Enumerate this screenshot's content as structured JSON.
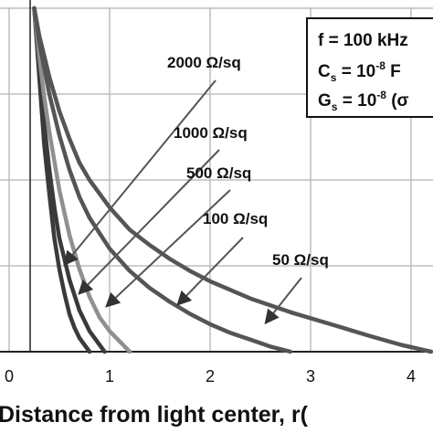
{
  "chart_data": {
    "type": "line",
    "xlabel": "Distance from light center, r(",
    "ylabel": "",
    "xlim": [
      0,
      4.4
    ],
    "x_ticks": [
      "0",
      "1",
      "2",
      "3",
      "4"
    ],
    "grid": true,
    "series": [
      {
        "name": "2000 Ω/sq",
        "color": "#3a3a3a",
        "x": [
          0.25,
          0.3,
          0.35,
          0.4,
          0.45,
          0.5,
          0.55,
          0.6,
          0.65,
          0.7,
          0.75,
          0.8
        ],
        "y": [
          1.0,
          0.8,
          0.6,
          0.46,
          0.33,
          0.24,
          0.17,
          0.11,
          0.07,
          0.04,
          0.02,
          0.0
        ]
      },
      {
        "name": "1000 Ω/sq",
        "color": "#3a3a3a",
        "x": [
          0.25,
          0.3,
          0.35,
          0.4,
          0.45,
          0.5,
          0.6,
          0.7,
          0.8,
          0.9,
          0.95
        ],
        "y": [
          1.0,
          0.82,
          0.66,
          0.53,
          0.42,
          0.33,
          0.21,
          0.12,
          0.06,
          0.02,
          0.0
        ]
      },
      {
        "name": "500 Ω/sq",
        "color": "#909090",
        "x": [
          0.25,
          0.3,
          0.35,
          0.4,
          0.5,
          0.6,
          0.7,
          0.8,
          0.9,
          1.0,
          1.1,
          1.2
        ],
        "y": [
          1.0,
          0.86,
          0.74,
          0.64,
          0.47,
          0.34,
          0.24,
          0.16,
          0.1,
          0.06,
          0.03,
          0.0
        ]
      },
      {
        "name": "100 Ω/sq",
        "color": "#555555",
        "x": [
          0.25,
          0.3,
          0.4,
          0.5,
          0.6,
          0.7,
          0.8,
          1.0,
          1.2,
          1.4,
          1.6,
          1.8,
          2.0,
          2.2,
          2.4,
          2.6,
          2.8
        ],
        "y": [
          1.0,
          0.9,
          0.75,
          0.63,
          0.53,
          0.45,
          0.39,
          0.3,
          0.235,
          0.185,
          0.145,
          0.11,
          0.08,
          0.055,
          0.035,
          0.015,
          0.0
        ]
      },
      {
        "name": "50 Ω/sq",
        "color": "#555555",
        "x": [
          0.25,
          0.3,
          0.4,
          0.5,
          0.6,
          0.7,
          0.8,
          1.0,
          1.2,
          1.4,
          1.6,
          1.8,
          2.0,
          2.4,
          2.8,
          3.2,
          3.6,
          3.9,
          4.2
        ],
        "y": [
          1.0,
          0.92,
          0.8,
          0.7,
          0.62,
          0.55,
          0.5,
          0.42,
          0.355,
          0.31,
          0.27,
          0.235,
          0.205,
          0.155,
          0.115,
          0.08,
          0.045,
          0.02,
          0.0
        ]
      }
    ],
    "annotations": {
      "params_line1": "f = 100 kHz",
      "params_line2_prefix": "C",
      "params_line2_sub": "s",
      "params_line2_mid": " = 10",
      "params_line2_sup": "-8",
      "params_line2_suffix": " F",
      "params_line3_prefix": "G",
      "params_line3_sub": "s",
      "params_line3_mid": " = 10",
      "params_line3_sup": "-8",
      "params_line3_suffix": " (σ"
    }
  }
}
